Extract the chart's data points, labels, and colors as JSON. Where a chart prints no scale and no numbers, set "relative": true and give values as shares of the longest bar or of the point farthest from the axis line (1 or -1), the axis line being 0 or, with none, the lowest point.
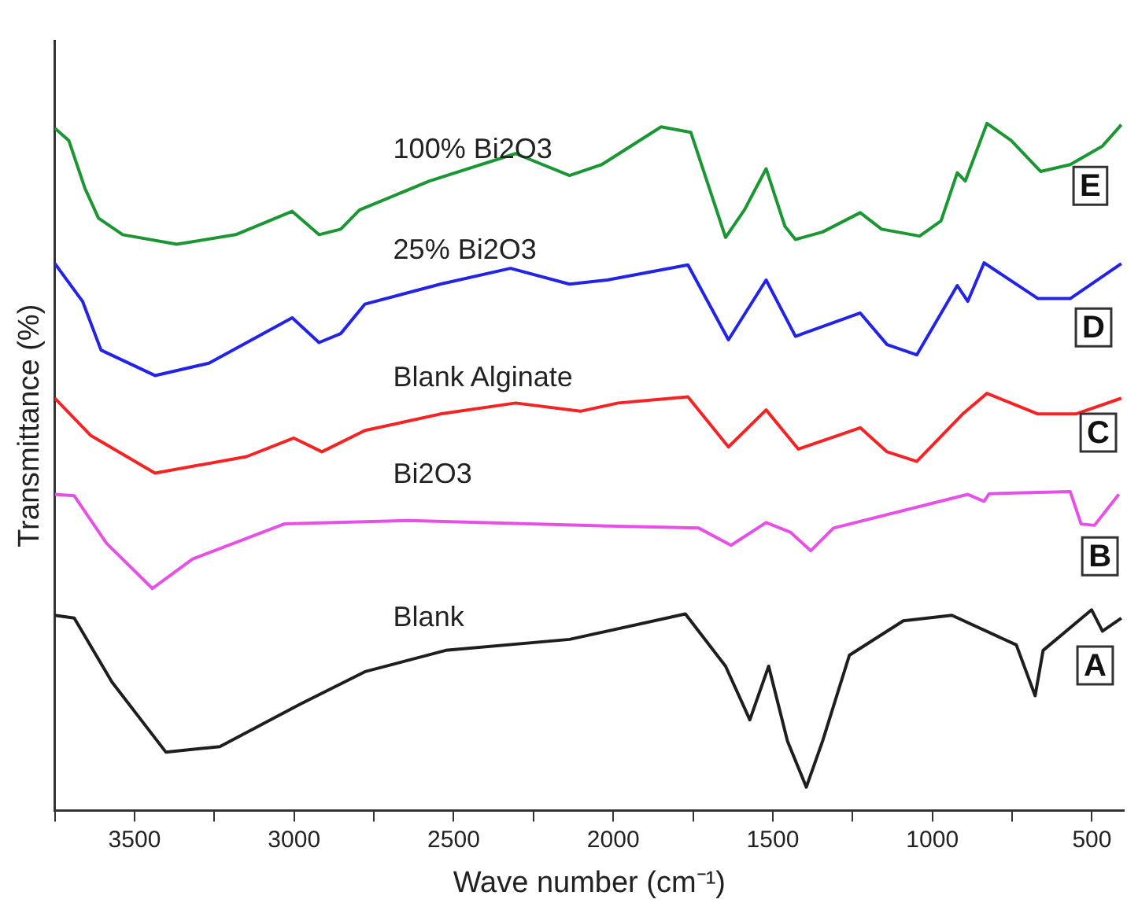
{
  "chart_data": {
    "type": "line",
    "xlabel": "Wave number (cm⁻¹)",
    "ylabel": "Transmittance (%)",
    "relative": true,
    "grid": false,
    "legend": false,
    "xlim": [
      3750,
      400
    ],
    "xticks": [
      {
        "value": 3750,
        "label": null
      },
      3500,
      {
        "value": 3250,
        "label": null
      },
      3000,
      {
        "value": 2750,
        "label": null
      },
      2500,
      {
        "value": 2250,
        "label": null
      },
      2000,
      {
        "value": 1750,
        "label": null
      },
      1500,
      {
        "value": 1250,
        "label": null
      },
      1000,
      {
        "value": 750,
        "label": null
      },
      500
    ],
    "series": [
      {
        "name": "100% Bi2O3",
        "color": "#1a9632",
        "x": [
          3750,
          3706,
          3655,
          3613,
          3537,
          3368,
          3183,
          3006,
          2922,
          2854,
          2795,
          2576,
          2306,
          2137,
          2036,
          1850,
          1757,
          1648,
          1589,
          1521,
          1462,
          1429,
          1344,
          1226,
          1159,
          1040,
          973,
          922,
          897,
          829,
          753,
          661,
          568,
          467,
          408
        ],
        "values": [
          0.993,
          0.975,
          0.905,
          0.862,
          0.838,
          0.824,
          0.838,
          0.872,
          0.838,
          0.846,
          0.874,
          0.916,
          0.956,
          0.924,
          0.94,
          0.995,
          0.987,
          0.834,
          0.874,
          0.934,
          0.85,
          0.831,
          0.842,
          0.87,
          0.846,
          0.836,
          0.858,
          0.928,
          0.916,
          1,
          0.975,
          0.93,
          0.94,
          0.967,
          0.998
        ]
      },
      {
        "name": "25% Bi2O3",
        "color": "#2323e6",
        "x": [
          3750,
          3663,
          3605,
          3436,
          3267,
          3006,
          2922,
          2854,
          2778,
          2542,
          2322,
          2137,
          2019,
          1766,
          1639,
          1521,
          1429,
          1226,
          1142,
          1049,
          922,
          889,
          838,
          669,
          568,
          408
        ],
        "values": [
          0.796,
          0.741,
          0.67,
          0.633,
          0.651,
          0.717,
          0.681,
          0.694,
          0.737,
          0.766,
          0.789,
          0.766,
          0.772,
          0.794,
          0.685,
          0.772,
          0.69,
          0.724,
          0.678,
          0.663,
          0.764,
          0.741,
          0.797,
          0.745,
          0.745,
          0.796
        ]
      },
      {
        "name": "Blank Alginate",
        "color": "#f52323",
        "x": [
          3750,
          3638,
          3436,
          3149,
          3001,
          2913,
          2778,
          2542,
          2306,
          2103,
          1985,
          1766,
          1639,
          1521,
          1420,
          1226,
          1142,
          1049,
          905,
          829,
          669,
          551,
          408
        ],
        "values": [
          0.6,
          0.546,
          0.491,
          0.515,
          0.542,
          0.522,
          0.553,
          0.577,
          0.593,
          0.581,
          0.593,
          0.602,
          0.529,
          0.583,
          0.526,
          0.557,
          0.522,
          0.508,
          0.577,
          0.607,
          0.577,
          0.577,
          0.6
        ]
      },
      {
        "name": "Bi2O3",
        "color": "#e650e6",
        "x": [
          3750,
          3689,
          3588,
          3444,
          3318,
          3031,
          2643,
          2103,
          1732,
          1631,
          1521,
          1445,
          1381,
          1310,
          889,
          838,
          822,
          568,
          534,
          492,
          416
        ],
        "values": [
          0.46,
          0.458,
          0.389,
          0.323,
          0.366,
          0.417,
          0.422,
          0.415,
          0.411,
          0.386,
          0.419,
          0.405,
          0.378,
          0.411,
          0.46,
          0.45,
          0.461,
          0.464,
          0.417,
          0.415,
          0.46
        ]
      },
      {
        "name": "Blank",
        "color": "#1e1e1e",
        "x": [
          3750,
          3689,
          3571,
          3402,
          3233,
          2980,
          2778,
          2525,
          2137,
          1774,
          1648,
          1572,
          1513,
          1454,
          1395,
          1344,
          1260,
          1091,
          939,
          737,
          678,
          653,
          501,
          467,
          408
        ],
        "values": [
          0.284,
          0.28,
          0.187,
          0.085,
          0.093,
          0.155,
          0.202,
          0.233,
          0.249,
          0.286,
          0.21,
          0.132,
          0.21,
          0.101,
          0.034,
          0.101,
          0.226,
          0.276,
          0.284,
          0.241,
          0.167,
          0.233,
          0.292,
          0.261,
          0.28
        ]
      }
    ],
    "annotations": [
      {
        "text": "E",
        "x": 505,
        "y": 0.909
      },
      {
        "text": "D",
        "x": 495,
        "y": 0.703
      },
      {
        "text": "C",
        "x": 480,
        "y": 0.55
      },
      {
        "text": "B",
        "x": 475,
        "y": 0.37
      },
      {
        "text": "A",
        "x": 490,
        "y": 0.211
      }
    ]
  }
}
